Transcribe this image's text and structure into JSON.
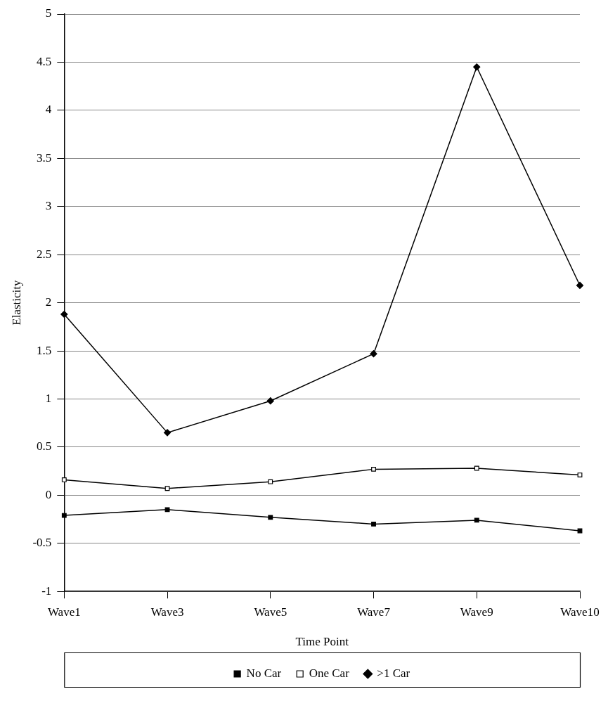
{
  "chart_data": {
    "type": "line",
    "xlabel": "Time Point",
    "ylabel": "Elasticity",
    "categories": [
      "Wave1",
      "Wave3",
      "Wave5",
      "Wave7",
      "Wave9",
      "Wave10"
    ],
    "series": [
      {
        "name": "No Car",
        "color": "#000000",
        "marker": "square",
        "values": [
          -0.21,
          -0.15,
          -0.23,
          -0.3,
          -0.26,
          -0.37
        ]
      },
      {
        "name": "One Car",
        "color": "#000000",
        "marker": "square",
        "values": [
          0.16,
          0.07,
          0.14,
          0.27,
          0.28,
          0.21
        ]
      },
      {
        "name": ">1 Car",
        "color": "#000000",
        "marker": "diamond",
        "values": [
          1.88,
          0.65,
          0.98,
          1.47,
          4.45,
          2.18
        ]
      }
    ],
    "ylim": [
      -1,
      5
    ],
    "yticks": [
      -1,
      -0.5,
      0,
      0.5,
      1,
      1.5,
      2,
      2.5,
      3,
      3.5,
      4,
      4.5,
      5
    ],
    "grid": "y",
    "legend": "bottom",
    "line_style": "solid"
  }
}
